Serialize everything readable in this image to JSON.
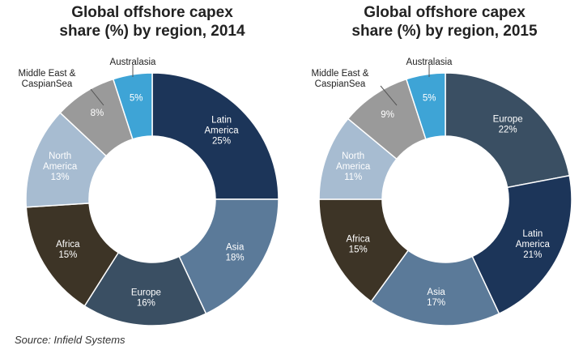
{
  "chart_data": [
    {
      "type": "pie",
      "donut": true,
      "title_line1": "Global offshore capex",
      "title_line2": "share (%) by region, 2014",
      "unit": "%",
      "slices": [
        {
          "label": [
            "Latin",
            "America"
          ],
          "value": 25,
          "color": "#1c3559",
          "text_color": "#ffffff",
          "outside": false
        },
        {
          "label": [
            "Asia"
          ],
          "value": 18,
          "color": "#5b7a99",
          "text_color": "#ffffff",
          "outside": false
        },
        {
          "label": [
            "Europe"
          ],
          "value": 16,
          "color": "#3a4f63",
          "text_color": "#ffffff",
          "outside": false
        },
        {
          "label": [
            "Africa"
          ],
          "value": 15,
          "color": "#3d3426",
          "text_color": "#ffffff",
          "outside": false
        },
        {
          "label": [
            "North",
            "America"
          ],
          "value": 13,
          "color": "#a7bcd1",
          "text_color": "#ffffff",
          "outside": false
        },
        {
          "label": [
            "Middle East &",
            "CaspianSea"
          ],
          "value": 8,
          "color": "#9a9a9a",
          "text_color": "#ffffff",
          "outside": true
        },
        {
          "label": [
            "Australasia"
          ],
          "value": 5,
          "color": "#3ea4d6",
          "text_color": "#ffffff",
          "outside": true
        }
      ]
    },
    {
      "type": "pie",
      "donut": true,
      "title_line1": "Global offshore capex",
      "title_line2": "share (%) by region, 2015",
      "unit": "%",
      "slices": [
        {
          "label": [
            "Europe"
          ],
          "value": 22,
          "color": "#3a4f63",
          "text_color": "#ffffff",
          "outside": false
        },
        {
          "label": [
            "Latin",
            "America"
          ],
          "value": 21,
          "color": "#1c3559",
          "text_color": "#ffffff",
          "outside": false
        },
        {
          "label": [
            "Asia"
          ],
          "value": 17,
          "color": "#5b7a99",
          "text_color": "#ffffff",
          "outside": false
        },
        {
          "label": [
            "Africa"
          ],
          "value": 15,
          "color": "#3d3426",
          "text_color": "#ffffff",
          "outside": false
        },
        {
          "label": [
            "North",
            "America"
          ],
          "value": 11,
          "color": "#a7bcd1",
          "text_color": "#ffffff",
          "outside": false
        },
        {
          "label": [
            "Middle East &",
            "CaspianSea"
          ],
          "value": 9,
          "color": "#9a9a9a",
          "text_color": "#ffffff",
          "outside": true
        },
        {
          "label": [
            "Australasia"
          ],
          "value": 5,
          "color": "#3ea4d6",
          "text_color": "#ffffff",
          "outside": true
        }
      ]
    }
  ],
  "source": "Source: Infield Systems"
}
